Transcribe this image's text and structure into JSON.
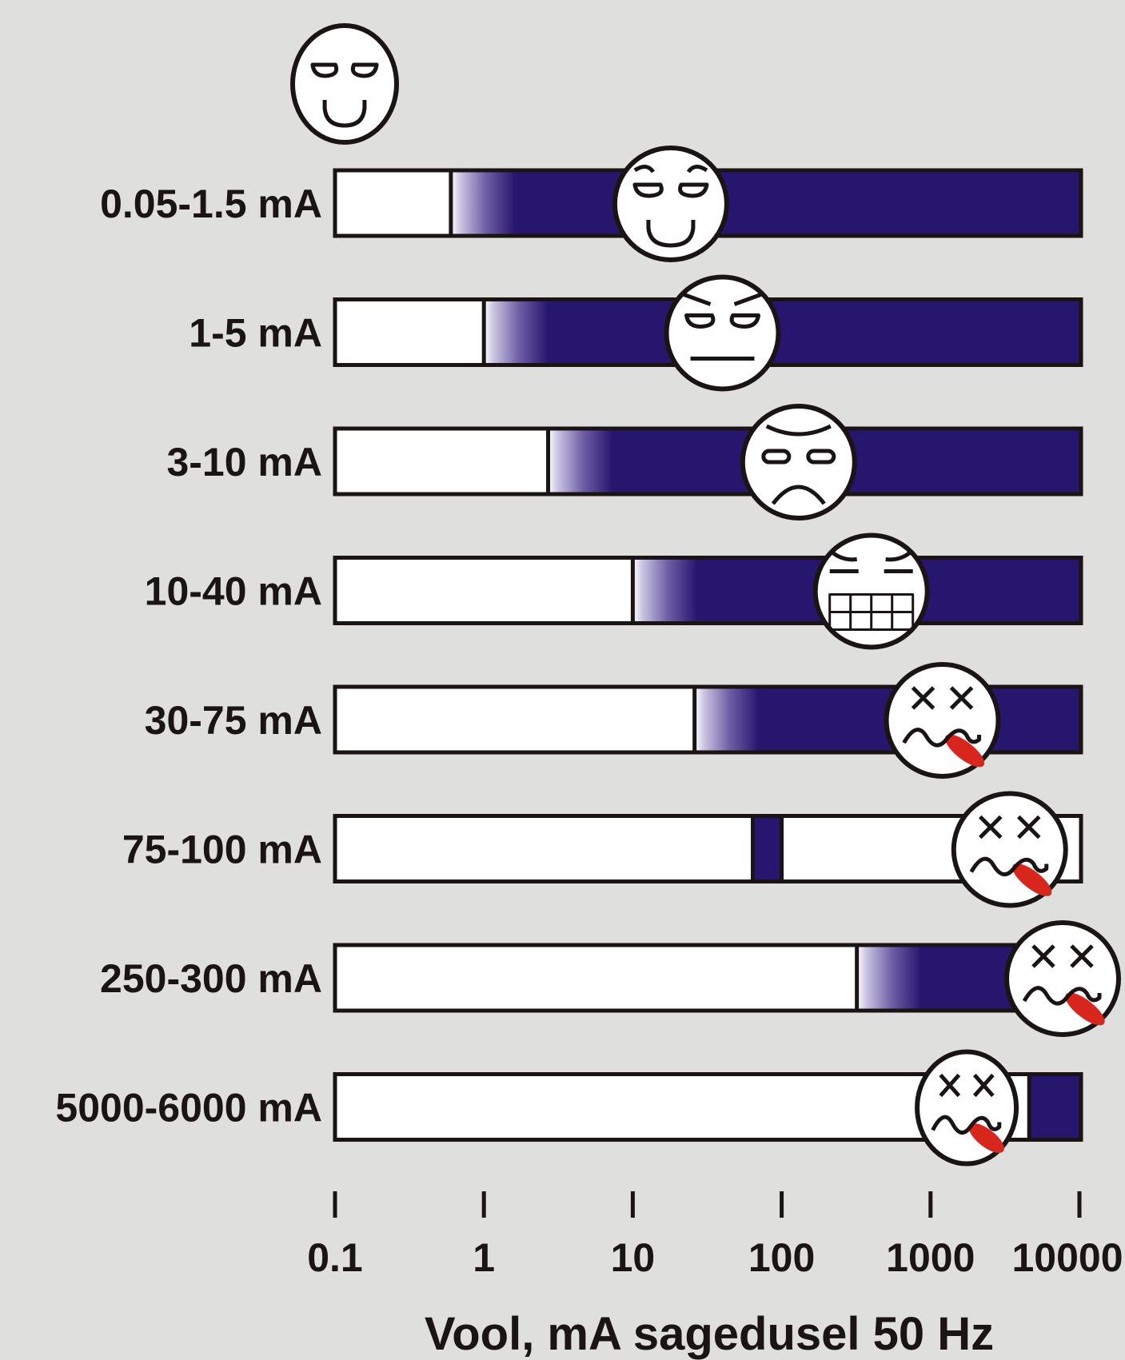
{
  "chart_data": {
    "type": "bar",
    "subtype": "horizontal-range-bands",
    "xscale": "log",
    "xlim": [
      0.1,
      11000
    ],
    "xlabel": "Vool, mA sagedusel 50 Hz",
    "xticks": [
      0.1,
      1,
      10,
      100,
      1000,
      10000
    ],
    "xtick_labels": [
      "0.1",
      "1",
      "10",
      "100",
      "1000",
      "10000"
    ],
    "grid": false,
    "legend": "none",
    "top_icon": "content-face-icon",
    "colors": {
      "background": "#dfe0de",
      "band": "#27166e",
      "bar_empty": "#ffffff",
      "outline": "#1a1514",
      "tongue": "#d8261c"
    },
    "series": [
      {
        "name": "0.05-1.5 mA",
        "fill_start": 0.6,
        "fill_end": 11000,
        "gradient": true,
        "face": "smile-face-icon",
        "face_at": 18
      },
      {
        "name": "1-5 mA",
        "fill_start": 1,
        "fill_end": 11000,
        "gradient": true,
        "face": "stern-face-icon",
        "face_at": 40
      },
      {
        "name": "3-10 mA",
        "fill_start": 2.7,
        "fill_end": 11000,
        "gradient": true,
        "face": "frown-face-icon",
        "face_at": 130
      },
      {
        "name": "10-40 mA",
        "fill_start": 10,
        "fill_end": 11000,
        "gradient": true,
        "face": "grimace-face-icon",
        "face_at": 400
      },
      {
        "name": "30-75 mA",
        "fill_start": 26,
        "fill_end": 11000,
        "gradient": true,
        "face": "dead-face-icon",
        "face_at": 1200
      },
      {
        "name": "75-100 mA",
        "fill_start": 64,
        "fill_end": 100,
        "gradient": false,
        "face": "dead-face-icon",
        "face_at": 3400
      },
      {
        "name": "250-300 mA",
        "fill_start": 320,
        "fill_end": 11000,
        "gradient": true,
        "face": "dead-face-icon",
        "face_at": 10000
      },
      {
        "name": "5000-6000 mA",
        "fill_start": 4600,
        "fill_end": 11000,
        "gradient": false,
        "face": "dead-face-icon",
        "face_at": 1750
      }
    ]
  }
}
